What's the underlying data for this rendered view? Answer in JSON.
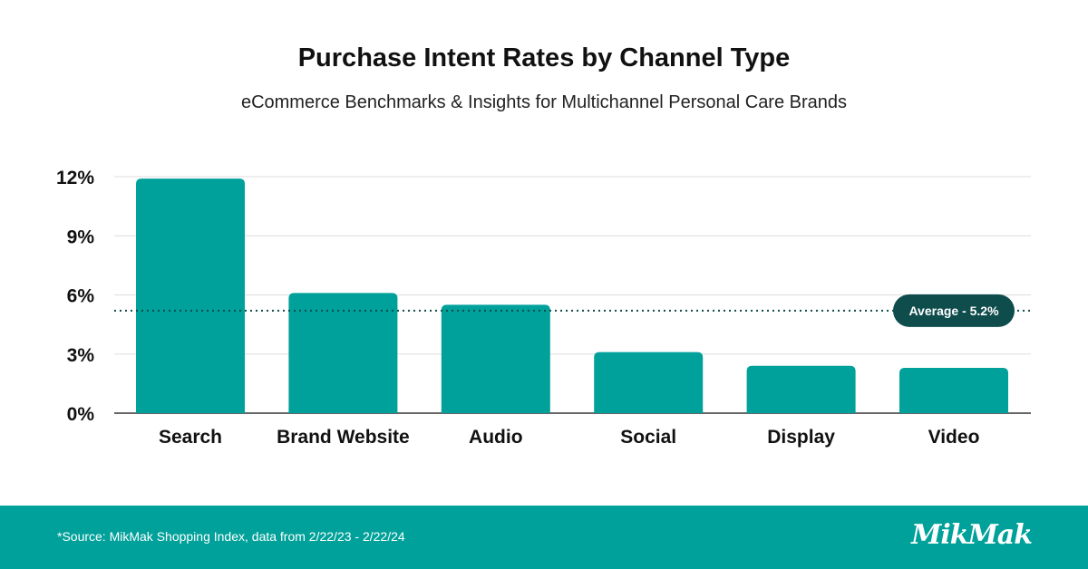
{
  "header": {
    "title": "Purchase Intent Rates by Channel Type",
    "subtitle": "eCommerce Benchmarks & Insights for Multichannel Personal Care Brands"
  },
  "footer": {
    "source": "*Source: MikMak Shopping Index, data from 2/22/23 - 2/22/24",
    "logo": "MikMak"
  },
  "colors": {
    "bar": "#00a19a",
    "average_line": "#0f4c4c",
    "badge": "#0f4c4c",
    "footer": "#00a19a"
  },
  "chart_data": {
    "type": "bar",
    "title": "Purchase Intent Rates by Channel Type",
    "subtitle": "eCommerce Benchmarks & Insights for Multichannel Personal Care Brands",
    "categories": [
      "Search",
      "Brand Website",
      "Audio",
      "Social",
      "Display",
      "Video"
    ],
    "values": [
      11.9,
      6.1,
      5.5,
      3.1,
      2.4,
      2.3
    ],
    "unit": "%",
    "ylim": [
      0,
      12
    ],
    "yticks": [
      0,
      3,
      6,
      9,
      12
    ],
    "ytick_labels": [
      "0%",
      "3%",
      "6%",
      "9%",
      "12%"
    ],
    "grid": true,
    "reference_line": {
      "value": 5.2,
      "label": "Average - 5.2%",
      "style": "dotted"
    },
    "xlabel": "",
    "ylabel": ""
  }
}
